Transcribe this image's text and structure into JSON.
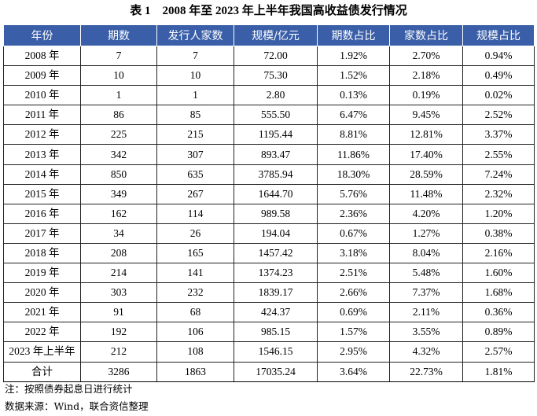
{
  "caption": "表 1　2008 年至 2023 年上半年我国高收益债发行情况",
  "table": {
    "headers": [
      "年份",
      "期数",
      "发行人家数",
      "规模/亿元",
      "期数占比",
      "家数占比",
      "规模占比"
    ],
    "rows": [
      [
        "2008 年",
        "7",
        "7",
        "72.00",
        "1.92%",
        "2.70%",
        "0.94%"
      ],
      [
        "2009 年",
        "10",
        "10",
        "75.30",
        "1.52%",
        "2.18%",
        "0.49%"
      ],
      [
        "2010 年",
        "1",
        "1",
        "2.80",
        "0.13%",
        "0.19%",
        "0.02%"
      ],
      [
        "2011 年",
        "86",
        "85",
        "555.50",
        "6.47%",
        "9.45%",
        "2.52%"
      ],
      [
        "2012 年",
        "225",
        "215",
        "1195.44",
        "8.81%",
        "12.81%",
        "3.37%"
      ],
      [
        "2013 年",
        "342",
        "307",
        "893.47",
        "11.86%",
        "17.40%",
        "2.55%"
      ],
      [
        "2014 年",
        "850",
        "635",
        "3785.94",
        "18.30%",
        "28.59%",
        "7.24%"
      ],
      [
        "2015 年",
        "349",
        "267",
        "1644.70",
        "5.76%",
        "11.48%",
        "2.32%"
      ],
      [
        "2016 年",
        "162",
        "114",
        "989.58",
        "2.36%",
        "4.20%",
        "1.20%"
      ],
      [
        "2017 年",
        "34",
        "26",
        "194.04",
        "0.67%",
        "1.27%",
        "0.38%"
      ],
      [
        "2018 年",
        "208",
        "165",
        "1457.42",
        "3.18%",
        "8.04%",
        "2.16%"
      ],
      [
        "2019 年",
        "214",
        "141",
        "1374.23",
        "2.51%",
        "5.48%",
        "1.60%"
      ],
      [
        "2020 年",
        "303",
        "232",
        "1839.17",
        "2.66%",
        "7.37%",
        "1.68%"
      ],
      [
        "2021 年",
        "91",
        "68",
        "424.37",
        "0.69%",
        "2.11%",
        "0.36%"
      ],
      [
        "2022 年",
        "192",
        "106",
        "985.15",
        "1.57%",
        "3.55%",
        "0.89%"
      ],
      [
        "2023 年上半年",
        "212",
        "108",
        "1546.15",
        "2.95%",
        "4.32%",
        "2.57%"
      ],
      [
        "合计",
        "3286",
        "1863",
        "17035.24",
        "3.64%",
        "22.73%",
        "1.81%"
      ]
    ]
  },
  "notes": {
    "note": "注：按照债券起息日进行统计",
    "source": "数据来源：Wind，联合资信整理"
  }
}
